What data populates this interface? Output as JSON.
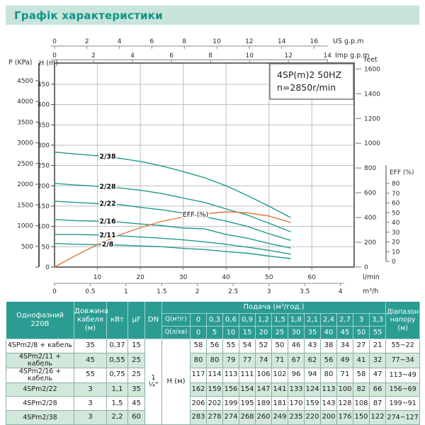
{
  "page": {
    "title": "Графік характеристики"
  },
  "model_box": {
    "line1": "4SP(m)2  50HZ",
    "line2": "n=2850r/min"
  },
  "chart_labels": {
    "p_axis": "P (KPa)",
    "h_axis": "H (m)",
    "us": "US g.p.m",
    "imp": "Imp g.p.m",
    "feet": "feet",
    "lmin": "l/min",
    "m3h": "m³/h",
    "eff_axis_title": "EFF (%)",
    "eff_curve_label": "EFF (%)"
  },
  "chart_data": {
    "type": "line",
    "title": "4SP(m)2 50HZ, n=2850r/min",
    "x_lmin": [
      0,
      5,
      10,
      15,
      20,
      25,
      30,
      35,
      40,
      45,
      50,
      55
    ],
    "xlabel_primary": "l/min",
    "xlabel_secondary": "m³/h",
    "ylabel_left": "H (m)",
    "ylabel_left_secondary": "P (KPa)",
    "ylabel_right": "feet",
    "ylabel_far_right": "EFF (%)",
    "grid": true,
    "ylim_h": [
      0,
      500
    ],
    "series": [
      {
        "name": "2/38",
        "values": [
          283,
          278,
          274,
          268,
          260,
          249,
          235,
          220,
          200,
          176,
          150,
          122
        ]
      },
      {
        "name": "2/28",
        "values": [
          206,
          202,
          199,
          195,
          189,
          181,
          170,
          159,
          143,
          128,
          108,
          87
        ]
      },
      {
        "name": "2/22",
        "values": [
          162,
          159,
          156,
          154,
          147,
          141,
          133,
          124,
          113,
          100,
          82,
          66
        ]
      },
      {
        "name": "2/16",
        "values": [
          117,
          114,
          113,
          111,
          106,
          102,
          96,
          94,
          80,
          71,
          58,
          47
        ]
      },
      {
        "name": "2/11",
        "values": [
          80,
          80,
          79,
          77,
          74,
          71,
          67,
          62,
          56,
          49,
          41,
          32
        ]
      },
      {
        "name": "2/8",
        "values": [
          58,
          56,
          55,
          54,
          52,
          50,
          46,
          43,
          38,
          34,
          27,
          21
        ]
      }
    ],
    "eff_series": {
      "name": "EFF (%)",
      "values": [
        0,
        11,
        21,
        30,
        37,
        43,
        47,
        50,
        52,
        51,
        48,
        42
      ]
    },
    "axis_ticks": {
      "us_gpm": [
        0,
        2,
        4,
        6,
        8,
        10,
        12,
        14,
        16
      ],
      "imp_gpm": [
        0,
        2,
        4,
        6,
        8,
        10,
        12,
        14
      ],
      "lmin": [
        10,
        20,
        30,
        40,
        50,
        60
      ],
      "m3h": [
        0,
        0.5,
        1,
        1.5,
        2,
        2.5,
        3,
        3.5,
        4
      ],
      "h_m": [
        0,
        50,
        100,
        150,
        200,
        250,
        300,
        350,
        400,
        450
      ],
      "p_kpa": [
        0,
        500,
        1000,
        1500,
        2000,
        2500,
        3000,
        3500,
        4000,
        4500
      ],
      "feet": [
        0,
        200,
        400,
        600,
        800,
        1000,
        1200,
        1400,
        1600
      ],
      "eff_pct": [
        0,
        10,
        20,
        30,
        40,
        50,
        60,
        70,
        80
      ]
    }
  },
  "table": {
    "header": {
      "phase": [
        "Однофазний",
        "220В"
      ],
      "cable": [
        "Довжина",
        "кабеля",
        "(м)"
      ],
      "kw": "кВт",
      "uf": "μF",
      "dn": "DN",
      "flow_title": "Подача (м³/год.)",
      "q_m3_label": "Q(м³/г)",
      "q_m3_values": [
        "0",
        "0,3",
        "0,6",
        "0,9",
        "1,2",
        "1,5",
        "1,8",
        "2,1",
        "2,4",
        "2,7",
        "3",
        "3,3"
      ],
      "q_lmin_label": "Q(л/хв)",
      "q_lmin_values": [
        "0",
        "5",
        "10",
        "15",
        "20",
        "25",
        "30",
        "35",
        "40",
        "45",
        "50",
        "55"
      ],
      "range": [
        "Діапазон",
        "напору",
        "(м)"
      ]
    },
    "dn_value": "1 ¼\"",
    "h_label": "H (м)",
    "rows": [
      {
        "name": "4SPm2/8 + кабель",
        "cable": "35",
        "kw": "0,37",
        "uf": "15",
        "h": [
          "58",
          "56",
          "55",
          "54",
          "52",
          "50",
          "46",
          "43",
          "38",
          "34",
          "27",
          "21"
        ],
        "range": "55~22",
        "shaded": false
      },
      {
        "name": "4SPm2/11 + кабель",
        "cable": "45",
        "kw": "0,55",
        "uf": "25",
        "h": [
          "80",
          "80",
          "79",
          "77",
          "74",
          "71",
          "67",
          "62",
          "56",
          "49",
          "41",
          "32"
        ],
        "range": "77~34",
        "shaded": true
      },
      {
        "name": "4SPm2/16 + кабель",
        "cable": "55",
        "kw": "0,75",
        "uf": "25",
        "h": [
          "117",
          "114",
          "113",
          "111",
          "106",
          "102",
          "96",
          "94",
          "80",
          "71",
          "58",
          "47"
        ],
        "range": "113~49",
        "shaded": false
      },
      {
        "name": "4SPm2/22",
        "cable": "3",
        "kw": "1,1",
        "uf": "35",
        "h": [
          "162",
          "159",
          "156",
          "154",
          "147",
          "141",
          "133",
          "124",
          "113",
          "100",
          "82",
          "66"
        ],
        "range": "156~69",
        "shaded": true
      },
      {
        "name": "4SPm2/28",
        "cable": "3",
        "kw": "1,5",
        "uf": "45",
        "h": [
          "206",
          "202",
          "199",
          "195",
          "189",
          "181",
          "170",
          "159",
          "143",
          "128",
          "108",
          "87"
        ],
        "range": "199~91",
        "shaded": false
      },
      {
        "name": "4SPm2/38",
        "cable": "3",
        "kw": "2,2",
        "uf": "60",
        "h": [
          "283",
          "278",
          "274",
          "268",
          "260",
          "249",
          "235",
          "220",
          "200",
          "176",
          "150",
          "122"
        ],
        "range": "274~127",
        "shaded": true
      }
    ]
  },
  "colors": {
    "curve_teal": "#1b9c8c",
    "eff_orange": "#e0783c",
    "header_bg": "#2b9c92",
    "row_alt": "#d2e8da",
    "banner_bg": "#c8e4db",
    "title_text": "#0f9488",
    "grid": "#bdbdbd",
    "plot_border": "#3f3f3f"
  }
}
